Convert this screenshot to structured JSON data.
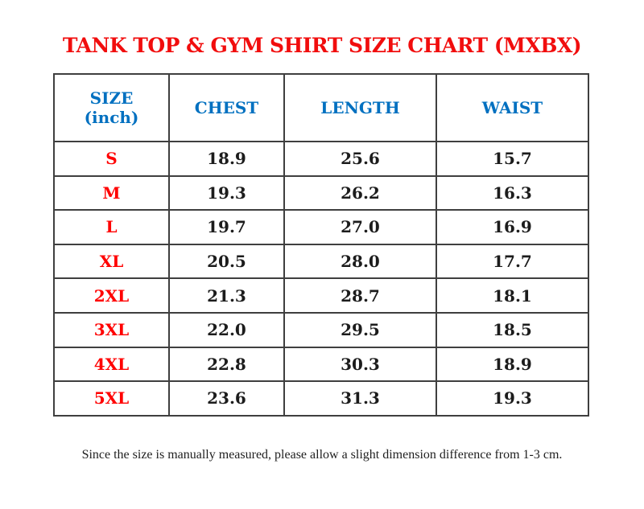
{
  "page": {
    "title": "TANK TOP & GYM SHIRT SIZE CHART (MXBX)",
    "footer_note": "Since the size is manually measured, please allow a slight dimension difference from 1-3 cm."
  },
  "table": {
    "headers": [
      {
        "key": "size",
        "label": "SIZE",
        "sub": "(inch)"
      },
      {
        "key": "chest",
        "label": "CHEST"
      },
      {
        "key": "length",
        "label": "LENGTH"
      },
      {
        "key": "waist",
        "label": "WAIST"
      }
    ],
    "rows": [
      {
        "size": "S",
        "values": [
          "18.9",
          "25.6",
          "15.7"
        ]
      },
      {
        "size": "M",
        "values": [
          "19.3",
          "26.2",
          "16.3"
        ]
      },
      {
        "size": "L",
        "values": [
          "19.7",
          "27.0",
          "16.9"
        ]
      },
      {
        "size": "XL",
        "values": [
          "20.5",
          "28.0",
          "17.7"
        ]
      },
      {
        "size": "2XL",
        "values": [
          "21.3",
          "28.7",
          "18.1"
        ]
      },
      {
        "size": "3XL",
        "values": [
          "22.0",
          "29.5",
          "18.5"
        ]
      },
      {
        "size": "4XL",
        "values": [
          "22.8",
          "30.3",
          "18.9"
        ]
      },
      {
        "size": "5XL",
        "values": [
          "23.6",
          "31.3",
          "19.3"
        ]
      }
    ]
  },
  "colors": {
    "title_red": "#f10d0d",
    "size_red": "#ff0000",
    "header_blue": "#0070c0",
    "value_text": "#1c1c1c",
    "footer_text": "#1f1f1f",
    "border": "#3f3f3f",
    "background": "#ffffff"
  }
}
